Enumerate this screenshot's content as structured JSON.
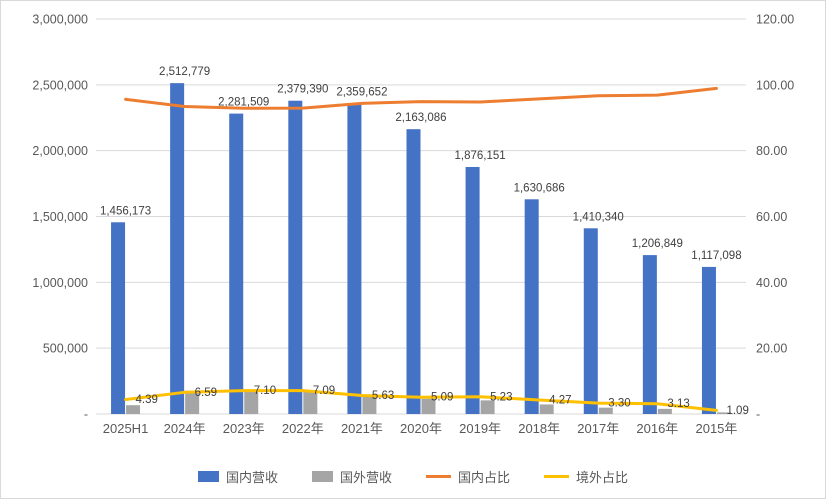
{
  "chart_data": {
    "type": "combo-bar-line",
    "categories": [
      "2025H1",
      "2024年",
      "2023年",
      "2022年",
      "2021年",
      "2020年",
      "2019年",
      "2018年",
      "2017年",
      "2016年",
      "2015年"
    ],
    "bar_series": [
      {
        "name": "国内营收",
        "color": "#4472C4",
        "axis": "left",
        "values": [
          1456173,
          2512779,
          2281509,
          2379390,
          2359652,
          2163086,
          1876151,
          1630686,
          1410340,
          1206849,
          1117098
        ],
        "labels": [
          "1,456,173",
          "2,512,779",
          "2,281,509",
          "2,379,390",
          "2,359,652",
          "2,163,086",
          "1,876,151",
          "1,630,686",
          "1,410,340",
          "1,206,849",
          "1,117,098"
        ],
        "show_labels": true
      },
      {
        "name": "国外营收",
        "color": "#A5A5A5",
        "axis": "left",
        "values": [
          66900,
          177300,
          174400,
          181600,
          140800,
          116000,
          103500,
          72700,
          48100,
          39000,
          12300
        ],
        "labels": [],
        "show_labels": false
      }
    ],
    "line_series": [
      {
        "name": "国内占比",
        "color": "#ED7D31",
        "axis": "right",
        "values": [
          95.61,
          93.41,
          92.9,
          92.91,
          94.37,
          94.91,
          94.77,
          95.73,
          96.7,
          96.87,
          98.91
        ],
        "labels": [],
        "show_labels": false
      },
      {
        "name": "境外占比",
        "color": "#FFC000",
        "axis": "right",
        "values": [
          4.39,
          6.59,
          7.1,
          7.09,
          5.63,
          5.09,
          5.23,
          4.27,
          3.3,
          3.13,
          1.09
        ],
        "labels": [
          "4.39",
          "6.59",
          "7.10",
          "7.09",
          "5.63",
          "5.09",
          "5.23",
          "4.27",
          "3.30",
          "3.13",
          "1.09"
        ],
        "show_labels": true
      }
    ],
    "left_axis": {
      "min": 0,
      "max": 3000000,
      "ticks": [
        "3,000,000",
        "2,500,000",
        "2,000,000",
        "1,500,000",
        "1,000,000",
        "500,000",
        "-"
      ]
    },
    "right_axis": {
      "min": 0,
      "max": 120,
      "ticks": [
        "120.00",
        "100.00",
        "80.00",
        "60.00",
        "40.00",
        "20.00",
        "-"
      ]
    },
    "grid": true,
    "gridline_color": "#D9D9D9",
    "legend_position": "bottom",
    "title": ""
  }
}
